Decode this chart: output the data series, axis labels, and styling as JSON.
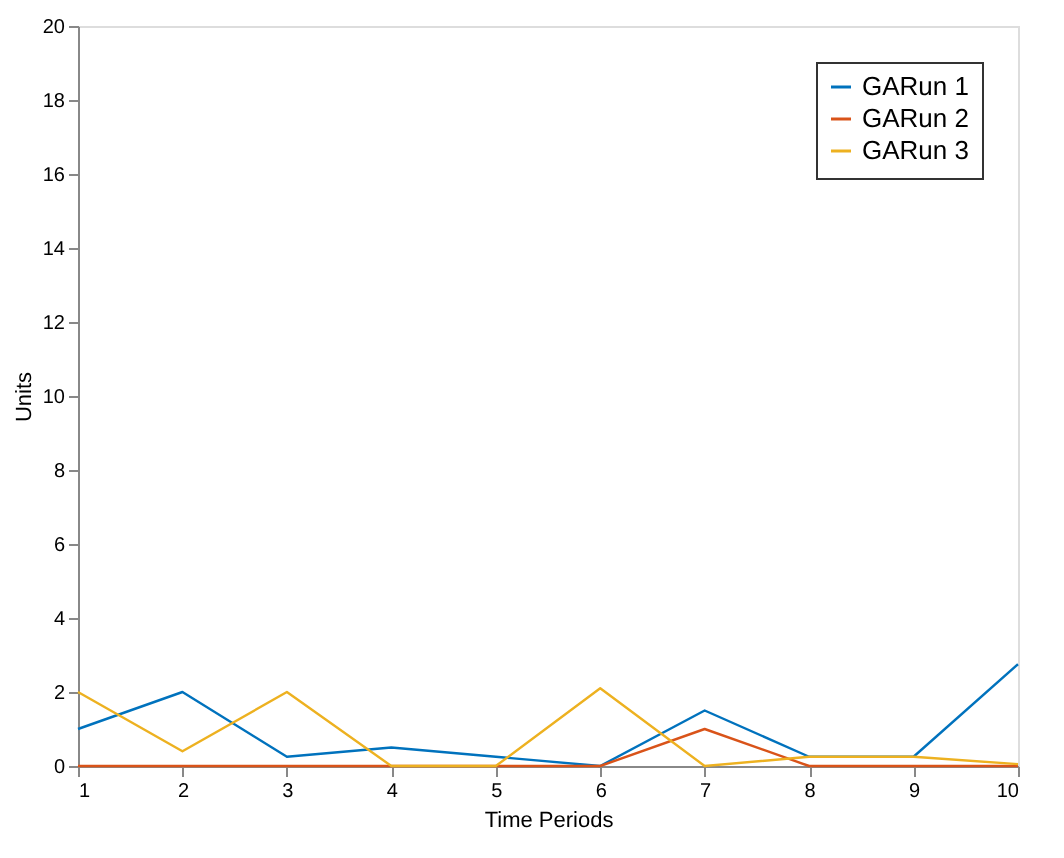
{
  "chart_data": {
    "type": "line",
    "xlabel": "Time Periods",
    "ylabel": "Units",
    "x": [
      1,
      2,
      3,
      4,
      5,
      6,
      7,
      8,
      9,
      10
    ],
    "series": [
      {
        "name": "GARun 1",
        "color": "#0072bd",
        "values": [
          1,
          2,
          0.25,
          0.5,
          0.25,
          0,
          1.5,
          0.25,
          0.25,
          2.75
        ]
      },
      {
        "name": "GARun 2",
        "color": "#d95319",
        "values": [
          0,
          0,
          0,
          0,
          0,
          0,
          1,
          0,
          0,
          0
        ]
      },
      {
        "name": "GARun 3",
        "color": "#edb120",
        "values": [
          2,
          0.4,
          2,
          0,
          0,
          2.1,
          0,
          0.25,
          0.25,
          0.05
        ]
      }
    ],
    "xlim": [
      1,
      10
    ],
    "xticks": [
      1,
      2,
      3,
      4,
      5,
      6,
      7,
      8,
      9,
      10
    ],
    "ylim": [
      0,
      20
    ],
    "yticks": [
      0,
      2,
      4,
      6,
      8,
      10,
      12,
      14,
      16,
      18,
      20
    ],
    "legend": "top right",
    "grid": false,
    "marker": "none",
    "line_style": "solid"
  }
}
